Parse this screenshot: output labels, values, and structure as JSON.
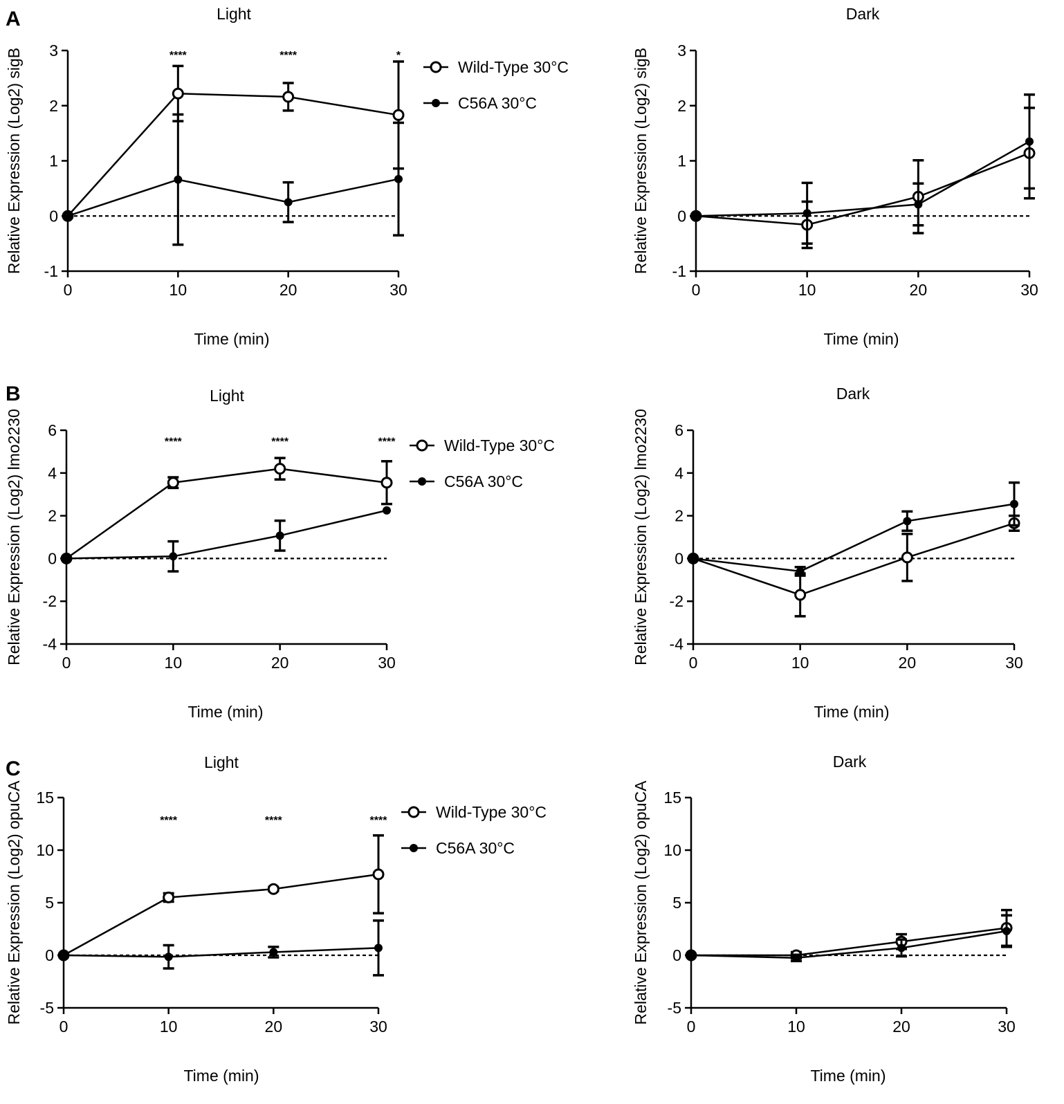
{
  "figure": {
    "panel_labels": [
      "A",
      "B",
      "C"
    ]
  },
  "colors": {
    "line": "#000000",
    "background": "#ffffff"
  },
  "chart_data": [
    {
      "panel": "A",
      "type": "line",
      "title": "Light",
      "xlabel": "Time (min)",
      "ylabel": "Relative Expression (Log2) sigB",
      "x": [
        0,
        10,
        20,
        30
      ],
      "xlim": [
        0,
        30
      ],
      "ylim": [
        -1,
        3
      ],
      "xticks": [
        0,
        10,
        20,
        30
      ],
      "yticks": [
        -1,
        0,
        1,
        2,
        3
      ],
      "baseline": 0,
      "legend": "right",
      "series": [
        {
          "name": "Wild-Type 30°C",
          "marker": "open-circle",
          "values": [
            0,
            2.22,
            2.16,
            1.83
          ],
          "error": [
            0,
            0.5,
            0.25,
            0.97
          ]
        },
        {
          "name": "C56A 30°C",
          "marker": "filled-circle",
          "values": [
            0,
            0.66,
            0.25,
            0.67
          ],
          "error": [
            0,
            1.18,
            0.36,
            1.02
          ]
        }
      ],
      "significance": [
        {
          "x": 10,
          "label": "****"
        },
        {
          "x": 20,
          "label": "****"
        },
        {
          "x": 30,
          "label": "*"
        }
      ]
    },
    {
      "panel": "A",
      "type": "line",
      "title": "Dark",
      "xlabel": "Time (min)",
      "ylabel": "Relative Expression (Log2) sigB",
      "x": [
        0,
        10,
        20,
        30
      ],
      "xlim": [
        0,
        30
      ],
      "ylim": [
        -1,
        3
      ],
      "xticks": [
        0,
        10,
        20,
        30
      ],
      "yticks": [
        -1,
        0,
        1,
        2,
        3
      ],
      "baseline": 0,
      "series": [
        {
          "name": "Wild-Type 30°C",
          "marker": "open-circle",
          "values": [
            0,
            -0.16,
            0.35,
            1.14
          ],
          "error": [
            0,
            0.42,
            0.66,
            0.82
          ]
        },
        {
          "name": "C56A 30°C",
          "marker": "filled-circle",
          "values": [
            0,
            0.05,
            0.21,
            1.35
          ],
          "error": [
            0,
            0.55,
            0.38,
            0.85
          ]
        }
      ],
      "significance": []
    },
    {
      "panel": "B",
      "type": "line",
      "title": "Light",
      "xlabel": "Time (min)",
      "ylabel": "Relative Expression (Log2) lmo2230",
      "x": [
        0,
        10,
        20,
        30
      ],
      "xlim": [
        0,
        30
      ],
      "ylim": [
        -4,
        6
      ],
      "xticks": [
        0,
        10,
        20,
        30
      ],
      "yticks": [
        -4,
        -2,
        0,
        2,
        4,
        6
      ],
      "baseline": 0,
      "legend": "right",
      "series": [
        {
          "name": "Wild-Type 30°C",
          "marker": "open-circle",
          "values": [
            0,
            3.55,
            4.2,
            3.55
          ],
          "error": [
            0,
            0.25,
            0.5,
            1.0
          ]
        },
        {
          "name": "C56A 30°C",
          "marker": "filled-circle",
          "values": [
            0,
            0.1,
            1.07,
            2.25
          ],
          "error": [
            0,
            0.7,
            0.7,
            0
          ]
        }
      ],
      "significance": [
        {
          "x": 10,
          "label": "****"
        },
        {
          "x": 20,
          "label": "****"
        },
        {
          "x": 30,
          "label": "****"
        }
      ]
    },
    {
      "panel": "B",
      "type": "line",
      "title": "Dark",
      "xlabel": "Time (min)",
      "ylabel": "Relative Expression (Log2) lmo2230",
      "x": [
        0,
        10,
        20,
        30
      ],
      "xlim": [
        0,
        30
      ],
      "ylim": [
        -4,
        6
      ],
      "xticks": [
        0,
        10,
        20,
        30
      ],
      "yticks": [
        -4,
        -2,
        0,
        2,
        4,
        6
      ],
      "baseline": 0,
      "series": [
        {
          "name": "Wild-Type 30°C",
          "marker": "open-circle",
          "values": [
            0,
            -1.7,
            0.05,
            1.65
          ],
          "error": [
            0,
            1.0,
            1.1,
            0.35
          ]
        },
        {
          "name": "C56A 30°C",
          "marker": "filled-circle",
          "values": [
            0,
            -0.6,
            1.75,
            2.55
          ],
          "error": [
            0,
            0.2,
            0.45,
            1.0
          ]
        }
      ],
      "significance": []
    },
    {
      "panel": "C",
      "type": "line",
      "title": "Light",
      "xlabel": "Time (min)",
      "ylabel": "Relative Expression (Log2) opuCA",
      "x": [
        0,
        10,
        20,
        30
      ],
      "xlim": [
        0,
        30
      ],
      "ylim": [
        -5,
        15
      ],
      "xticks": [
        0,
        10,
        20,
        30
      ],
      "yticks": [
        -5,
        0,
        5,
        10,
        15
      ],
      "baseline": 0,
      "legend": "right",
      "series": [
        {
          "name": "Wild-Type 30°C",
          "marker": "open-circle",
          "values": [
            0,
            5.5,
            6.3,
            7.7
          ],
          "error": [
            0,
            0.4,
            0.2,
            3.7
          ]
        },
        {
          "name": "C56A 30°C",
          "marker": "filled-circle",
          "values": [
            0,
            -0.15,
            0.3,
            0.7
          ],
          "error": [
            0,
            1.1,
            0.5,
            2.6
          ]
        }
      ],
      "significance": [
        {
          "x": 10,
          "label": "****"
        },
        {
          "x": 20,
          "label": "****"
        },
        {
          "x": 30,
          "label": "****"
        }
      ]
    },
    {
      "panel": "C",
      "type": "line",
      "title": "Dark",
      "xlabel": "Time (min)",
      "ylabel": "Relative Expression (Log2) opuCA",
      "x": [
        0,
        10,
        20,
        30
      ],
      "xlim": [
        0,
        30
      ],
      "ylim": [
        -5,
        15
      ],
      "xticks": [
        0,
        10,
        20,
        30
      ],
      "yticks": [
        -5,
        0,
        5,
        10,
        15
      ],
      "baseline": 0,
      "series": [
        {
          "name": "Wild-Type 30°C",
          "marker": "open-circle",
          "values": [
            0,
            0.0,
            1.3,
            2.6
          ],
          "error": [
            0,
            0.3,
            0.7,
            1.7
          ]
        },
        {
          "name": "C56A 30°C",
          "marker": "filled-circle",
          "values": [
            0,
            -0.25,
            0.7,
            2.3
          ],
          "error": [
            0,
            0.3,
            0.8,
            1.5
          ]
        }
      ],
      "significance": []
    }
  ]
}
